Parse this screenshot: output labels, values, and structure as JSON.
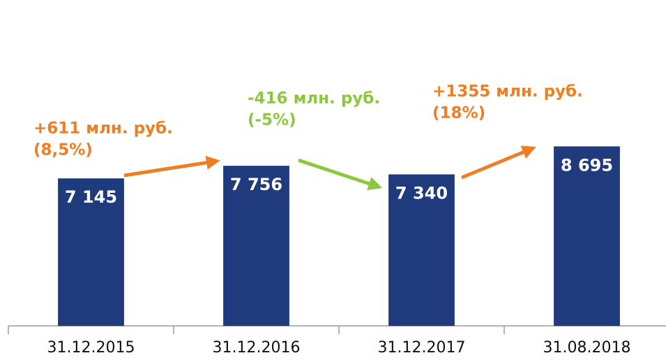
{
  "chart_data": {
    "type": "bar",
    "categories": [
      "31.12.2015",
      "31.12.2016",
      "31.12.2017",
      "31.08.2018"
    ],
    "values": [
      7145,
      7756,
      7340,
      8695
    ],
    "value_labels": [
      "7 145",
      "7 756",
      "7 340",
      "8 695"
    ],
    "color": "#203a7e",
    "ylim": [
      0,
      14000
    ],
    "annotations": [
      {
        "lines": [
          "+611 млн. руб.",
          "(8,5%)"
        ],
        "color": "#ef7d22"
      },
      {
        "lines": [
          "-416 млн. руб.",
          "(-5%)"
        ],
        "color": "#8dc63f"
      },
      {
        "lines": [
          "+1355 млн. руб.",
          "(18%)"
        ],
        "color": "#ef7d22"
      }
    ]
  }
}
